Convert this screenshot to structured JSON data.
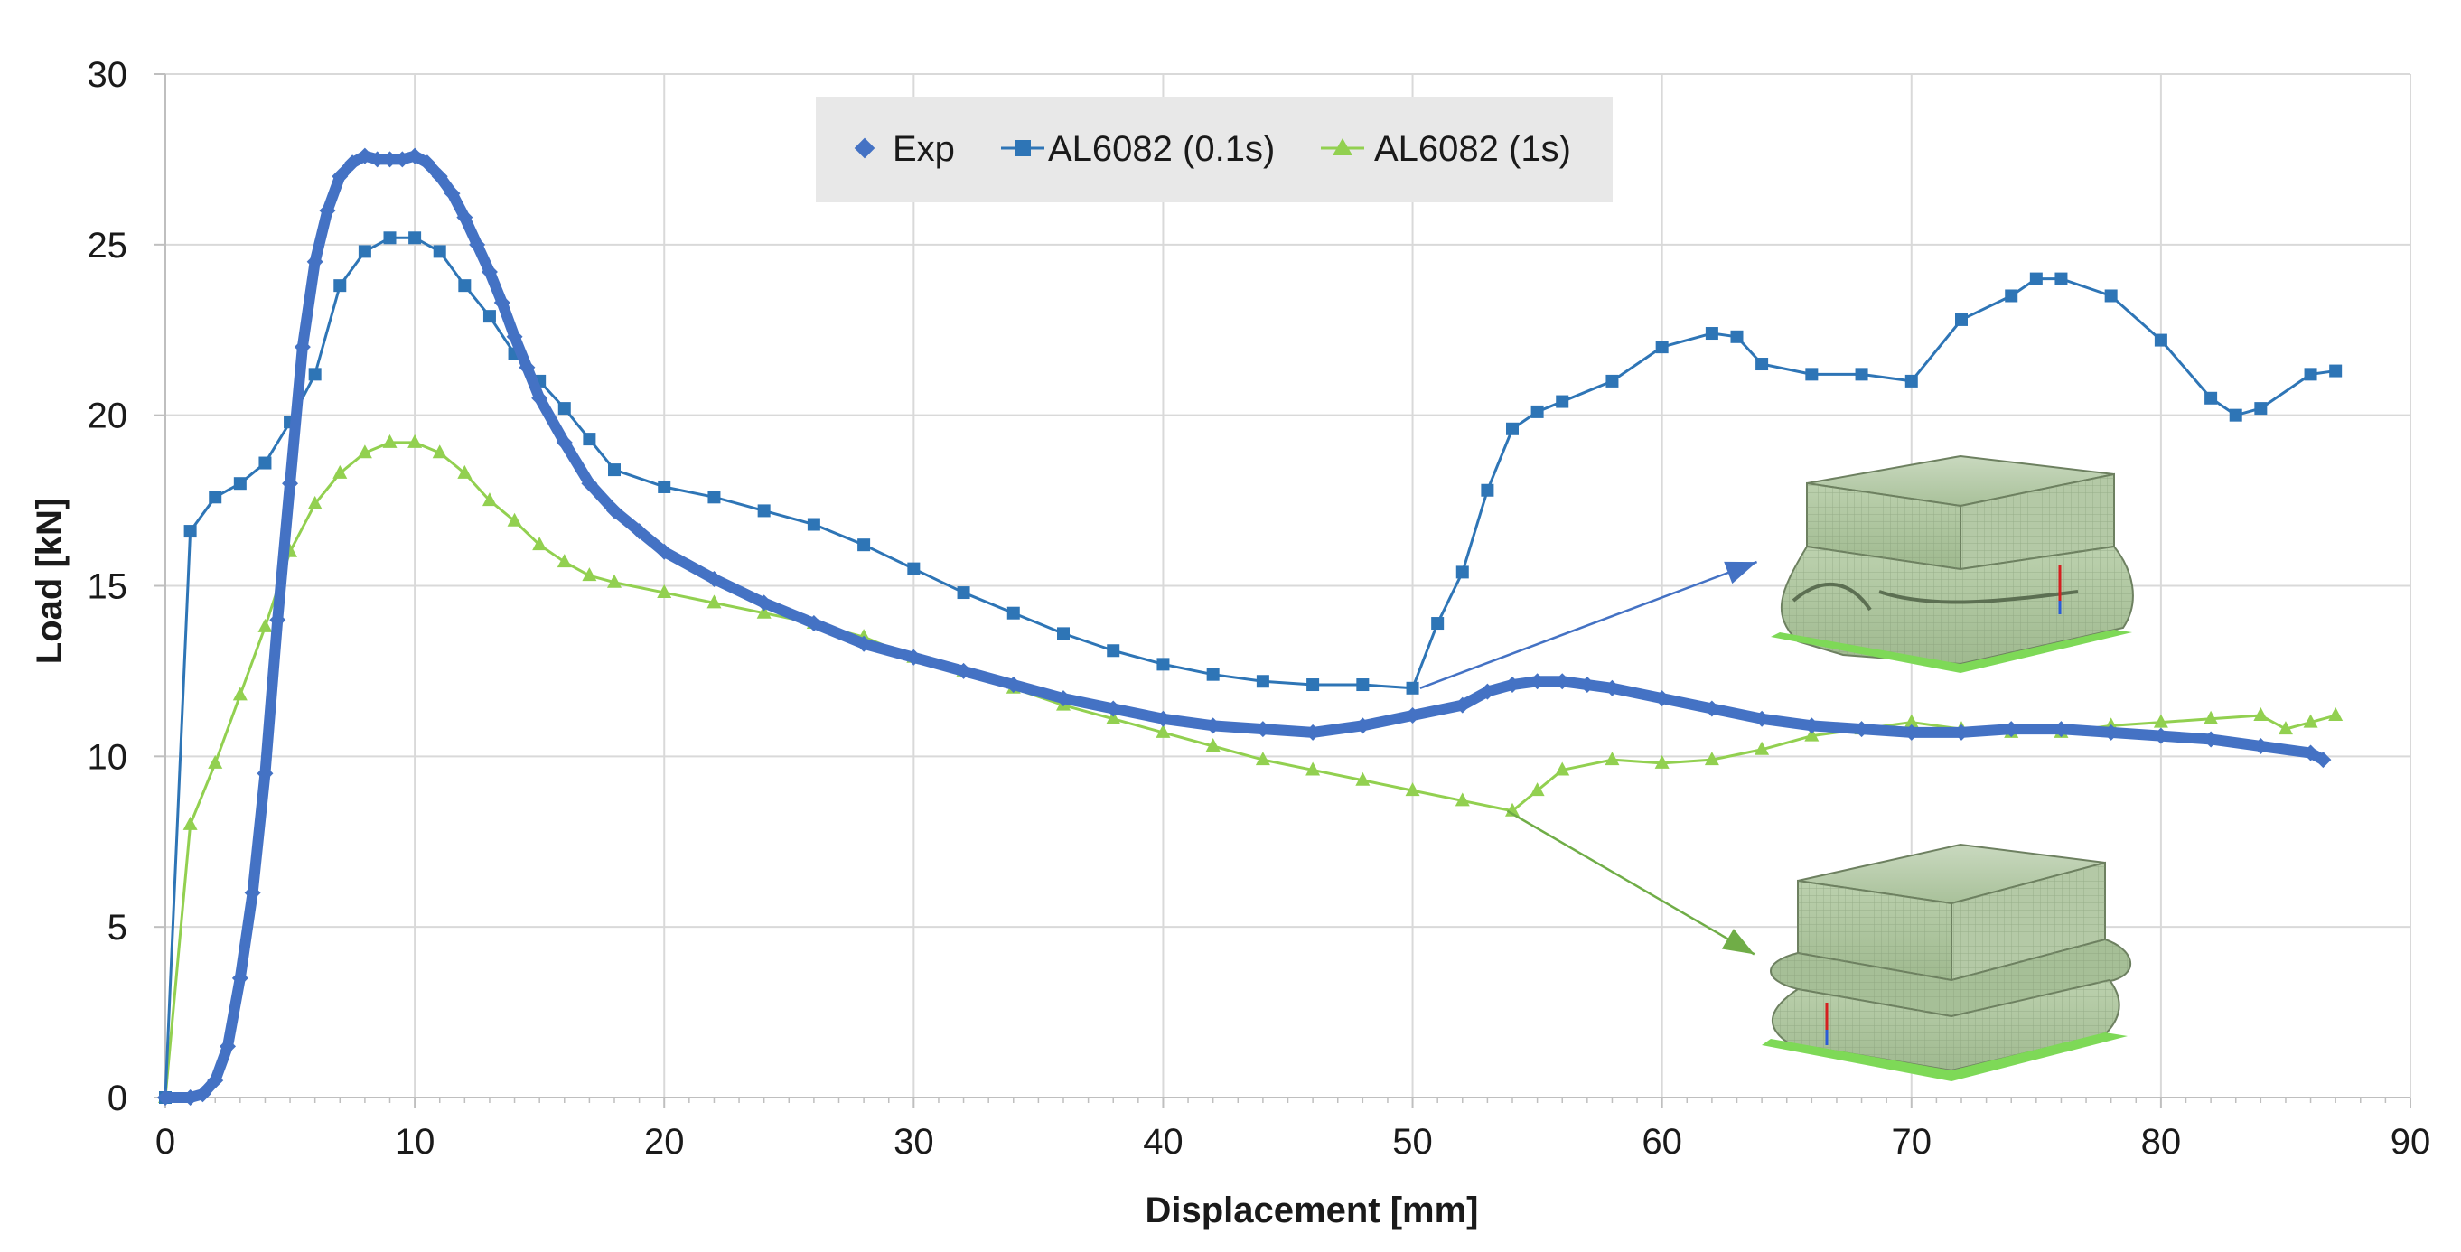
{
  "chart_data": {
    "type": "line",
    "xlabel": "Displacement [mm]",
    "ylabel": "Load [kN]",
    "xlim": [
      0,
      90
    ],
    "ylim": [
      0,
      30
    ],
    "xticks": [
      0,
      10,
      20,
      30,
      40,
      50,
      60,
      70,
      80,
      90
    ],
    "yticks": [
      0,
      5,
      10,
      15,
      20,
      25,
      30
    ],
    "grid": true,
    "legend_position": "top-center",
    "colors": {
      "exp": "#4472C4",
      "al01": "#2E75B6",
      "al1": "#92D050"
    },
    "series": [
      {
        "name": "Exp",
        "marker": "diamond",
        "x": [
          0,
          1,
          1.5,
          2,
          2.5,
          3,
          3.5,
          4,
          4.5,
          5,
          5.5,
          6,
          6.5,
          7,
          7.5,
          8,
          8.5,
          9,
          9.5,
          10,
          10.5,
          11,
          11.5,
          12,
          12.5,
          13,
          13.5,
          14,
          14.5,
          15,
          16,
          17,
          18,
          19,
          20,
          22,
          24,
          26,
          28,
          30,
          32,
          34,
          36,
          38,
          40,
          42,
          44,
          46,
          48,
          50,
          52,
          53,
          54,
          55,
          56,
          57,
          58,
          60,
          62,
          64,
          66,
          68,
          70,
          72,
          74,
          76,
          78,
          80,
          82,
          84,
          86,
          86.5
        ],
        "y": [
          0,
          0,
          0.1,
          0.5,
          1.5,
          3.5,
          6,
          9.5,
          14,
          18,
          22,
          24.5,
          26,
          27,
          27.4,
          27.6,
          27.5,
          27.5,
          27.5,
          27.6,
          27.4,
          27,
          26.5,
          25.8,
          25,
          24.2,
          23.3,
          22.3,
          21.4,
          20.5,
          19.2,
          18,
          17.2,
          16.6,
          16,
          15.2,
          14.5,
          13.9,
          13.3,
          12.9,
          12.5,
          12.1,
          11.7,
          11.4,
          11.1,
          10.9,
          10.8,
          10.7,
          10.9,
          11.2,
          11.5,
          11.9,
          12.1,
          12.2,
          12.2,
          12.1,
          12,
          11.7,
          11.4,
          11.1,
          10.9,
          10.8,
          10.7,
          10.7,
          10.8,
          10.8,
          10.7,
          10.6,
          10.5,
          10.3,
          10.1,
          9.9
        ]
      },
      {
        "name": "AL6082 (0.1s)",
        "marker": "square",
        "x": [
          0,
          1,
          2,
          3,
          4,
          5,
          6,
          7,
          8,
          9,
          10,
          11,
          12,
          13,
          14,
          15,
          16,
          17,
          18,
          20,
          22,
          24,
          26,
          28,
          30,
          32,
          34,
          36,
          38,
          40,
          42,
          44,
          46,
          48,
          50,
          51,
          52,
          53,
          54,
          55,
          56,
          58,
          60,
          62,
          63,
          64,
          66,
          68,
          70,
          72,
          74,
          75,
          76,
          78,
          80,
          82,
          83,
          84,
          86,
          87
        ],
        "y": [
          0,
          16.6,
          17.6,
          18,
          18.6,
          19.8,
          21.2,
          23.8,
          24.8,
          25.2,
          25.2,
          24.8,
          23.8,
          22.9,
          21.8,
          21,
          20.2,
          19.3,
          18.4,
          17.9,
          17.6,
          17.2,
          16.8,
          16.2,
          15.5,
          14.8,
          14.2,
          13.6,
          13.1,
          12.7,
          12.4,
          12.2,
          12.1,
          12.1,
          12,
          13.9,
          15.4,
          17.8,
          19.6,
          20.1,
          20.4,
          21,
          22,
          22.4,
          22.3,
          21.5,
          21.2,
          21.2,
          21,
          22.8,
          23.5,
          24,
          24,
          23.5,
          22.2,
          20.5,
          20,
          20.2,
          21.2,
          21.3
        ]
      },
      {
        "name": "AL6082 (1s)",
        "marker": "triangle",
        "x": [
          0,
          1,
          2,
          3,
          4,
          5,
          6,
          7,
          8,
          9,
          10,
          11,
          12,
          13,
          14,
          15,
          16,
          17,
          18,
          20,
          22,
          24,
          26,
          28,
          30,
          32,
          34,
          36,
          38,
          40,
          42,
          44,
          46,
          48,
          50,
          52,
          54,
          55,
          56,
          58,
          60,
          62,
          64,
          66,
          68,
          70,
          72,
          74,
          76,
          78,
          80,
          82,
          84,
          85,
          86,
          87
        ],
        "y": [
          0,
          8,
          9.8,
          11.8,
          13.8,
          16,
          17.4,
          18.3,
          18.9,
          19.2,
          19.2,
          18.9,
          18.3,
          17.5,
          16.9,
          16.2,
          15.7,
          15.3,
          15.1,
          14.8,
          14.5,
          14.2,
          13.9,
          13.5,
          12.9,
          12.5,
          12,
          11.5,
          11.1,
          10.7,
          10.3,
          9.9,
          9.6,
          9.3,
          9.0,
          8.7,
          8.4,
          9.0,
          9.6,
          9.9,
          9.8,
          9.9,
          10.2,
          10.6,
          10.8,
          11.0,
          10.8,
          10.7,
          10.7,
          10.9,
          11.0,
          11.1,
          11.2,
          10.8,
          11.0,
          11.2
        ]
      }
    ],
    "annotations": [
      {
        "name": "deformed-model-0.1s",
        "from": [
          50.3,
          12
        ],
        "to": [
          63.8,
          15.7
        ],
        "color": "#4472C4"
      },
      {
        "name": "deformed-model-1s",
        "from": [
          53.8,
          8.4
        ],
        "to": [
          63.7,
          4.2
        ],
        "color": "#70AD47"
      }
    ]
  }
}
